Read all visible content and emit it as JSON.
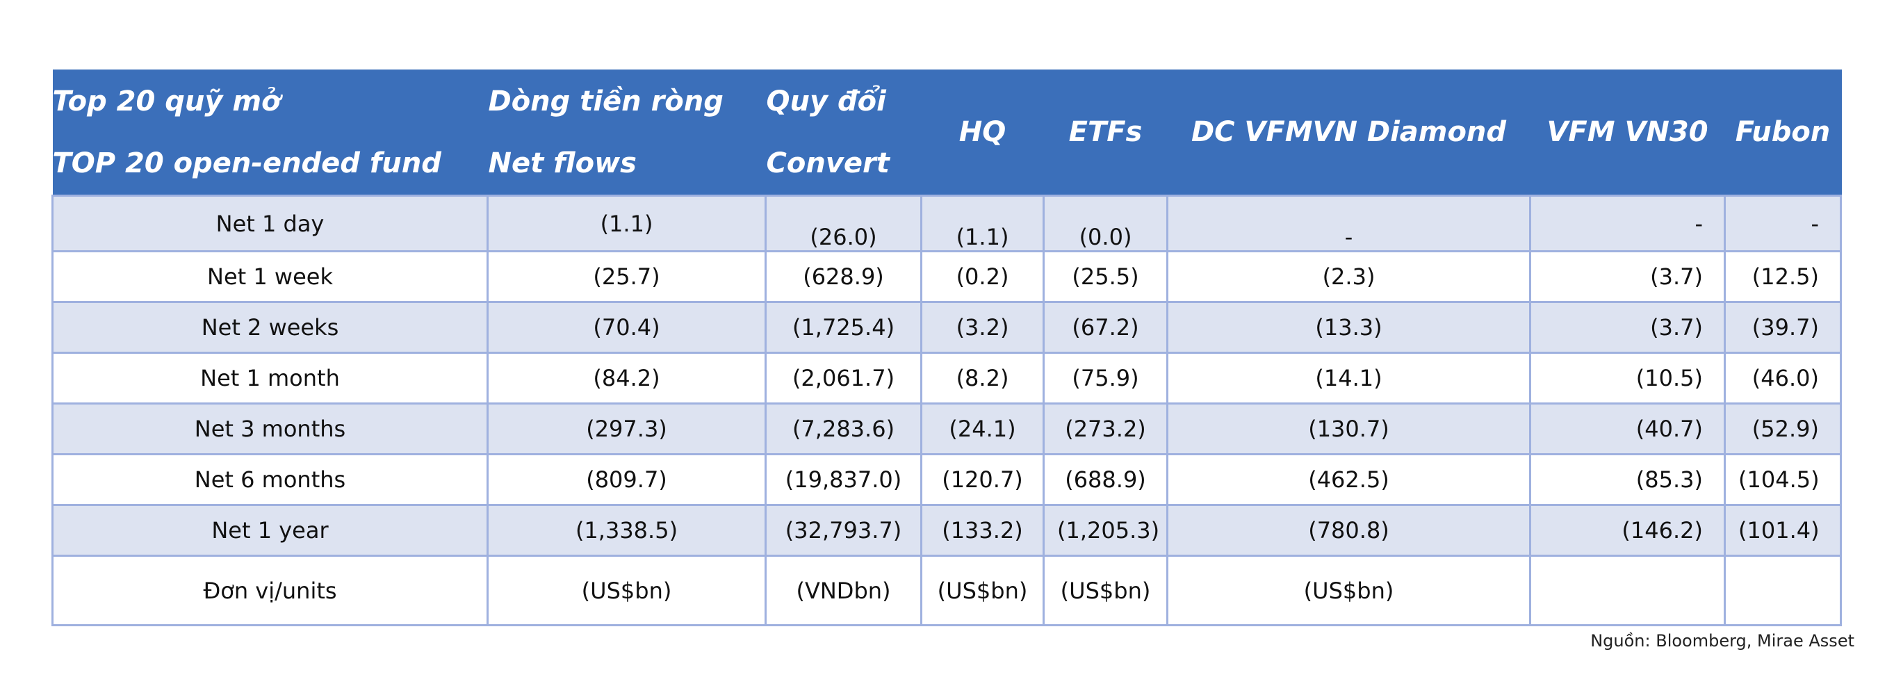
{
  "header": {
    "col1_line1": "Top 20 quỹ mở",
    "col1_line2": "TOP 20 open-ended fund",
    "col2_line1": "Dòng tiền ròng",
    "col2_line2": "Net flows",
    "col3_line1": "Quy đổi",
    "col3_line2": "Convert",
    "col4": "HQ",
    "col5": "ETFs",
    "col6": "DC VFMVN Diamond",
    "col7": "VFM VN30",
    "col8": "Fubon"
  },
  "rows": [
    {
      "label": "Net 1 day",
      "net_flows": "(1.1)",
      "convert": "(26.0)",
      "hq": "(1.1)",
      "etfs": "(0.0)",
      "diamond": "-",
      "vn30": "-",
      "fubon": "-"
    },
    {
      "label": "Net 1 week",
      "net_flows": "(25.7)",
      "convert": "(628.9)",
      "hq": "(0.2)",
      "etfs": "(25.5)",
      "diamond": "(2.3)",
      "vn30": "(3.7)",
      "fubon": "(12.5)"
    },
    {
      "label": "Net 2 weeks",
      "net_flows": "(70.4)",
      "convert": "(1,725.4)",
      "hq": "(3.2)",
      "etfs": "(67.2)",
      "diamond": "(13.3)",
      "vn30": "(3.7)",
      "fubon": "(39.7)"
    },
    {
      "label": "Net 1 month",
      "net_flows": "(84.2)",
      "convert": "(2,061.7)",
      "hq": "(8.2)",
      "etfs": "(75.9)",
      "diamond": "(14.1)",
      "vn30": "(10.5)",
      "fubon": "(46.0)"
    },
    {
      "label": "Net 3 months",
      "net_flows": "(297.3)",
      "convert": "(7,283.6)",
      "hq": "(24.1)",
      "etfs": "(273.2)",
      "diamond": "(130.7)",
      "vn30": "(40.7)",
      "fubon": "(52.9)"
    },
    {
      "label": "Net 6 months",
      "net_flows": "(809.7)",
      "convert": "(19,837.0)",
      "hq": "(120.7)",
      "etfs": "(688.9)",
      "diamond": "(462.5)",
      "vn30": "(85.3)",
      "fubon": "(104.5)"
    },
    {
      "label": "Net 1 year",
      "net_flows": "(1,338.5)",
      "convert": "(32,793.7)",
      "hq": "(133.2)",
      "etfs": "(1,205.3)",
      "diamond": "(780.8)",
      "vn30": "(146.2)",
      "fubon": "(101.4)"
    }
  ],
  "units": {
    "label": "Đơn vị/units",
    "net_flows": "(US$bn)",
    "convert": "(VNDbn)",
    "hq": "(US$bn)",
    "etfs": "(US$bn)",
    "diamond": "(US$bn)",
    "vn30": "",
    "fubon": ""
  },
  "source": "Nguồn: Bloomberg, Mirae Asset",
  "colors": {
    "header_bg": "#3b6fba",
    "alt_row_bg": "#dde3f1",
    "grid": "#9fb1df"
  }
}
